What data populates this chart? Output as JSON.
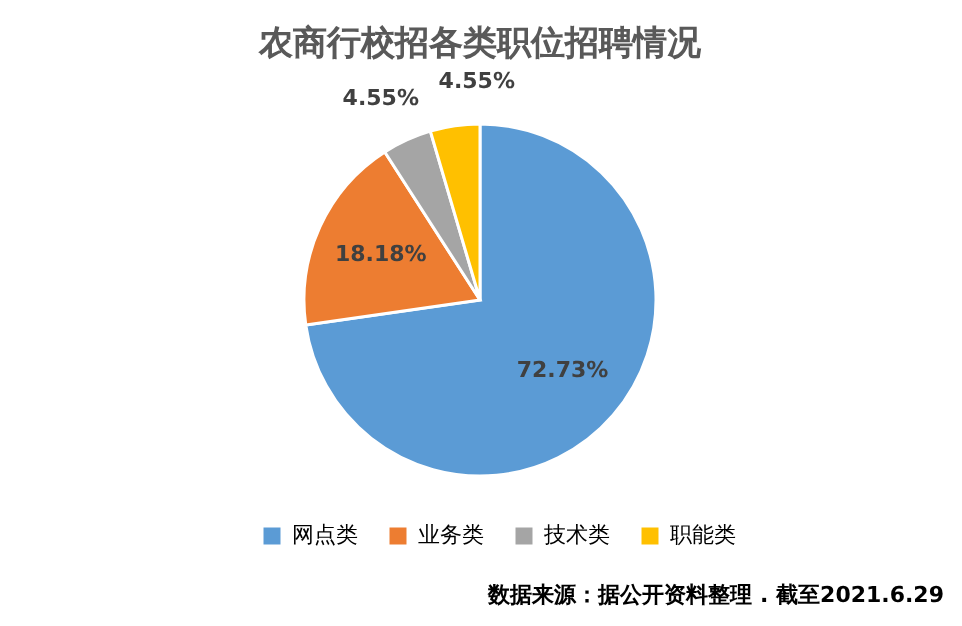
{
  "chart_data": {
    "type": "pie",
    "title": "农商行校招各类职位招聘情况",
    "categories": [
      "网点类",
      "业务类",
      "技术类",
      "职能类"
    ],
    "values": [
      72.73,
      18.18,
      4.55,
      4.55
    ],
    "colors": [
      "#5b9bd5",
      "#ed7d31",
      "#a5a5a5",
      "#ffc000"
    ],
    "value_labels": [
      "72.73%",
      "18.18%",
      "4.55%",
      "4.55%"
    ],
    "legend": "bottom",
    "annotations": [
      "数据来源：据公开资料整理 . 截至2021.6.29"
    ]
  }
}
